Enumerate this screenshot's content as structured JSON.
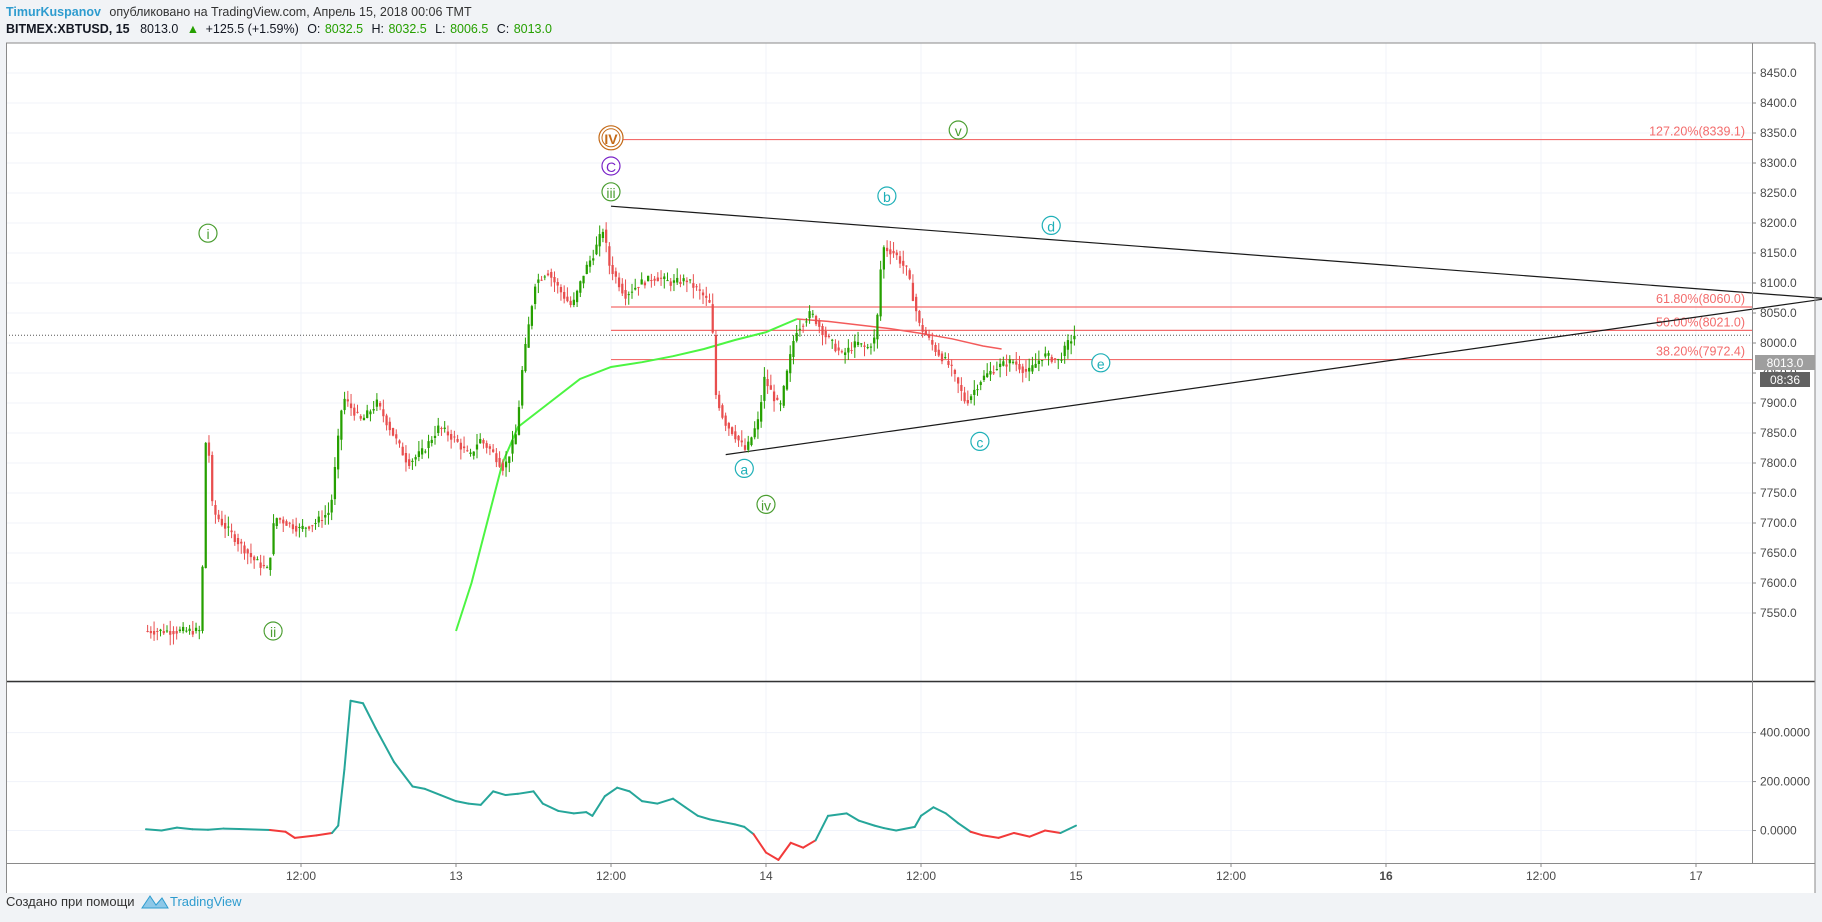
{
  "header": {
    "author": "TimurKuspanov",
    "published": "опубликовано на TradingView.com, Апрель 15, 2018 00:06 TMT",
    "symbol": "BITMEX:XBTUSD, 15",
    "last": "8013.0",
    "change": "+125.5 (+1.59%)",
    "o_label": "O:",
    "o_value": "8032.5",
    "h_label": "H:",
    "h_value": "8032.5",
    "l_label": "L:",
    "l_value": "8006.5",
    "c_label": "C:",
    "c_value": "8013.0"
  },
  "price_badge": {
    "price": "8013.0",
    "countdown": "08:36"
  },
  "footer": {
    "created_with": "Создано при помощи",
    "brand": "TradingView"
  },
  "colors": {
    "up": "#26a000",
    "down": "#e84e4e",
    "ma_green": "#4cf542",
    "ma_red": "#f35b5b",
    "fib": "#f36c6c",
    "osc_up": "#26a69a",
    "osc_down": "#f23a3a"
  },
  "chart_data": {
    "type": "candlestick",
    "symbol": "BITMEX:XBTUSD",
    "interval": "15",
    "price_axis": {
      "ylim": [
        7520,
        8500
      ],
      "ticks": [
        7550,
        7600,
        7650,
        7700,
        7750,
        7800,
        7850,
        7900,
        7950,
        8000,
        8050,
        8100,
        8150,
        8200,
        8250,
        8300,
        8350,
        8400,
        8450
      ]
    },
    "price_tick_labels": [
      "7550.0",
      "7600.0",
      "7650.0",
      "7700.0",
      "7750.0",
      "7800.0",
      "7850.0",
      "7900.0",
      "7950.0",
      "8000.0",
      "8050.0",
      "8100.0",
      "8150.0",
      "8200.0",
      "8250.0",
      "8300.0",
      "8350.0",
      "8400.0",
      "8450.0"
    ],
    "time_axis_labels": [
      {
        "label": "12:00",
        "t": 0.5
      },
      {
        "label": "13",
        "t": 1.0
      },
      {
        "label": "12:00",
        "t": 1.5
      },
      {
        "label": "14",
        "t": 2.0
      },
      {
        "label": "12:00",
        "t": 2.5
      },
      {
        "label": "15",
        "t": 3.0
      },
      {
        "label": "12:00",
        "t": 3.5
      },
      {
        "label": "16",
        "t": 4.0,
        "bold": true
      },
      {
        "label": "12:00",
        "t": 4.5
      },
      {
        "label": "17",
        "t": 5.0
      },
      {
        "label": "12:00",
        "t": 5.5
      }
    ],
    "price_path": [
      [
        0.0,
        7520
      ],
      [
        0.18,
        7520
      ],
      [
        0.19,
        7660
      ],
      [
        0.2,
        7880
      ],
      [
        0.22,
        7720
      ],
      [
        0.25,
        7700
      ],
      [
        0.3,
        7670
      ],
      [
        0.35,
        7640
      ],
      [
        0.4,
        7620
      ],
      [
        0.42,
        7710
      ],
      [
        0.5,
        7690
      ],
      [
        0.55,
        7700
      ],
      [
        0.6,
        7720
      ],
      [
        0.64,
        7910
      ],
      [
        0.7,
        7870
      ],
      [
        0.75,
        7900
      ],
      [
        0.8,
        7850
      ],
      [
        0.85,
        7800
      ],
      [
        0.9,
        7820
      ],
      [
        0.95,
        7860
      ],
      [
        1.0,
        7840
      ],
      [
        1.05,
        7810
      ],
      [
        1.08,
        7840
      ],
      [
        1.12,
        7820
      ],
      [
        1.16,
        7790
      ],
      [
        1.2,
        7850
      ],
      [
        1.22,
        7960
      ],
      [
        1.26,
        8100
      ],
      [
        1.3,
        8120
      ],
      [
        1.35,
        8080
      ],
      [
        1.38,
        8060
      ],
      [
        1.42,
        8120
      ],
      [
        1.45,
        8150
      ],
      [
        1.48,
        8190
      ],
      [
        1.5,
        8130
      ],
      [
        1.55,
        8080
      ],
      [
        1.6,
        8100
      ],
      [
        1.65,
        8110
      ],
      [
        1.7,
        8100
      ],
      [
        1.75,
        8105
      ],
      [
        1.8,
        8080
      ],
      [
        1.83,
        8060
      ],
      [
        1.84,
        7920
      ],
      [
        1.87,
        7870
      ],
      [
        1.9,
        7850
      ],
      [
        1.94,
        7820
      ],
      [
        1.98,
        7870
      ],
      [
        2.0,
        7940
      ],
      [
        2.05,
        7890
      ],
      [
        2.1,
        8020
      ],
      [
        2.15,
        8050
      ],
      [
        2.2,
        8010
      ],
      [
        2.25,
        7980
      ],
      [
        2.3,
        8000
      ],
      [
        2.33,
        7990
      ],
      [
        2.36,
        8010
      ],
      [
        2.38,
        8160
      ],
      [
        2.42,
        8150
      ],
      [
        2.46,
        8120
      ],
      [
        2.5,
        8030
      ],
      [
        2.55,
        7990
      ],
      [
        2.6,
        7960
      ],
      [
        2.65,
        7900
      ],
      [
        2.7,
        7940
      ],
      [
        2.75,
        7960
      ],
      [
        2.8,
        7970
      ],
      [
        2.85,
        7950
      ],
      [
        2.9,
        7980
      ],
      [
        2.95,
        7970
      ],
      [
        2.98,
        8000
      ],
      [
        3.0,
        8013
      ]
    ],
    "moving_average_green": [
      [
        1.0,
        7520
      ],
      [
        1.05,
        7600
      ],
      [
        1.1,
        7700
      ],
      [
        1.15,
        7800
      ],
      [
        1.2,
        7860
      ],
      [
        1.3,
        7900
      ],
      [
        1.4,
        7940
      ],
      [
        1.5,
        7960
      ],
      [
        1.6,
        7968
      ],
      [
        1.7,
        7978
      ],
      [
        1.8,
        7990
      ],
      [
        1.9,
        8005
      ],
      [
        2.0,
        8018
      ],
      [
        2.1,
        8040
      ]
    ],
    "moving_average_red": [
      [
        2.1,
        8040
      ],
      [
        2.2,
        8036
      ],
      [
        2.3,
        8030
      ],
      [
        2.4,
        8024
      ],
      [
        2.5,
        8016
      ],
      [
        2.6,
        8007
      ],
      [
        2.7,
        7995
      ],
      [
        2.76,
        7990
      ]
    ],
    "triangle_lines": [
      {
        "from": [
          1.5,
          8228
        ],
        "to": [
          5.6,
          8067
        ]
      },
      {
        "from": [
          1.87,
          7814
        ],
        "to": [
          5.6,
          8087
        ]
      }
    ],
    "fibonacci_levels": [
      {
        "label": "127.20%(8339.1)",
        "price": 8339.1,
        "from_t": 1.5
      },
      {
        "label": "61.80%(8060.0)",
        "price": 8060.0,
        "from_t": 1.5
      },
      {
        "label": "50.00%(8021.0)",
        "price": 8021.0,
        "from_t": 1.5
      },
      {
        "label": "38.20%(7972.4)",
        "price": 7972.4,
        "from_t": 1.5
      }
    ],
    "last_price_line": 8013.0,
    "wave_labels": [
      {
        "text": "IV",
        "t": 1.5,
        "price": 8342,
        "color": "#c46a18",
        "shape": "double"
      },
      {
        "text": "C",
        "t": 1.5,
        "price": 8295,
        "color": "#7a24c8",
        "shape": "circle"
      },
      {
        "text": "iii",
        "t": 1.5,
        "price": 8252,
        "color": "#4b9e31",
        "shape": "circle"
      },
      {
        "text": "i",
        "t": 0.2,
        "price": 8183,
        "color": "#4b9e31",
        "shape": "circle"
      },
      {
        "text": "ii",
        "t": 0.41,
        "price": 7520,
        "color": "#4b9e31",
        "shape": "circle"
      },
      {
        "text": "iv",
        "t": 2.0,
        "price": 7731,
        "color": "#4b9e31",
        "shape": "circle"
      },
      {
        "text": "v",
        "t": 2.62,
        "price": 8355,
        "color": "#4b9e31",
        "shape": "circle"
      },
      {
        "text": "a",
        "t": 1.93,
        "price": 7791,
        "color": "#1fb0b8",
        "shape": "circle"
      },
      {
        "text": "b",
        "t": 2.39,
        "price": 8245,
        "color": "#1fb0b8",
        "shape": "circle"
      },
      {
        "text": "c",
        "t": 2.69,
        "price": 7836,
        "color": "#1fb0b8",
        "shape": "circle"
      },
      {
        "text": "d",
        "t": 2.92,
        "price": 8196,
        "color": "#1fb0b8",
        "shape": "circle"
      },
      {
        "text": "e",
        "t": 3.08,
        "price": 7967,
        "color": "#1fb0b8",
        "shape": "circle"
      }
    ],
    "oscillator": {
      "ylim": [
        -100,
        570
      ],
      "ticks": [
        0,
        200,
        400
      ],
      "tick_labels": [
        "0.0000",
        "200.0000",
        "400.0000"
      ],
      "values": [
        [
          0.0,
          5
        ],
        [
          0.05,
          0
        ],
        [
          0.1,
          12
        ],
        [
          0.15,
          5
        ],
        [
          0.2,
          3
        ],
        [
          0.25,
          8
        ],
        [
          0.3,
          6
        ],
        [
          0.35,
          4
        ],
        [
          0.4,
          2
        ],
        [
          0.45,
          -5
        ],
        [
          0.48,
          -30
        ],
        [
          0.55,
          -20
        ],
        [
          0.6,
          -10
        ],
        [
          0.62,
          20
        ],
        [
          0.64,
          250
        ],
        [
          0.66,
          530
        ],
        [
          0.7,
          520
        ],
        [
          0.74,
          420
        ],
        [
          0.8,
          280
        ],
        [
          0.86,
          180
        ],
        [
          0.9,
          170
        ],
        [
          0.95,
          145
        ],
        [
          1.0,
          120
        ],
        [
          1.04,
          110
        ],
        [
          1.08,
          105
        ],
        [
          1.12,
          160
        ],
        [
          1.16,
          145
        ],
        [
          1.2,
          150
        ],
        [
          1.25,
          160
        ],
        [
          1.28,
          110
        ],
        [
          1.33,
          80
        ],
        [
          1.38,
          70
        ],
        [
          1.42,
          75
        ],
        [
          1.44,
          60
        ],
        [
          1.48,
          140
        ],
        [
          1.52,
          175
        ],
        [
          1.56,
          160
        ],
        [
          1.6,
          120
        ],
        [
          1.65,
          110
        ],
        [
          1.7,
          130
        ],
        [
          1.74,
          95
        ],
        [
          1.78,
          60
        ],
        [
          1.82,
          45
        ],
        [
          1.86,
          35
        ],
        [
          1.9,
          25
        ],
        [
          1.93,
          15
        ],
        [
          1.96,
          -15
        ],
        [
          2.0,
          -90
        ],
        [
          2.04,
          -120
        ],
        [
          2.08,
          -50
        ],
        [
          2.12,
          -70
        ],
        [
          2.16,
          -40
        ],
        [
          2.2,
          60
        ],
        [
          2.26,
          70
        ],
        [
          2.3,
          40
        ],
        [
          2.35,
          20
        ],
        [
          2.38,
          10
        ],
        [
          2.42,
          0
        ],
        [
          2.48,
          15
        ],
        [
          2.5,
          60
        ],
        [
          2.54,
          95
        ],
        [
          2.58,
          70
        ],
        [
          2.62,
          30
        ],
        [
          2.66,
          -5
        ],
        [
          2.7,
          -20
        ],
        [
          2.75,
          -30
        ],
        [
          2.8,
          -10
        ],
        [
          2.85,
          -25
        ],
        [
          2.9,
          0
        ],
        [
          2.95,
          -10
        ],
        [
          3.0,
          20
        ]
      ]
    }
  }
}
